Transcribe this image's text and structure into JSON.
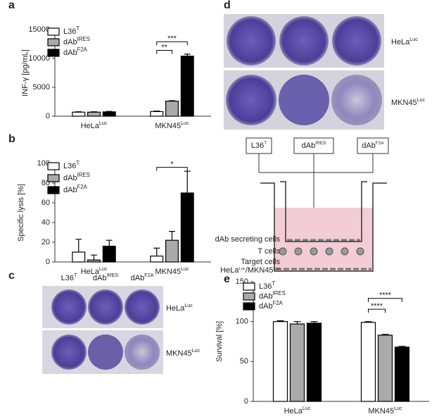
{
  "chart_data": [
    {
      "type": "bar",
      "letter": "a",
      "y_label": "INF-γ [pg/mL]",
      "categories": [
        "HeLa",
        "MKN45"
      ],
      "category_superscripts": [
        "Luc",
        "Luc"
      ],
      "series": [
        {
          "name": "L36",
          "name_sup": "T",
          "color": "#ffffff",
          "values": [
            700,
            800
          ],
          "errors": [
            60,
            80
          ]
        },
        {
          "name": "dAb",
          "name_sup": "IRES",
          "color": "#aaaaaa",
          "values": [
            700,
            2600
          ],
          "errors": [
            60,
            80
          ]
        },
        {
          "name": "dAb",
          "name_sup": "F2A",
          "color": "#000000",
          "values": [
            750,
            10400
          ],
          "errors": [
            80,
            350
          ]
        }
      ],
      "ylim": [
        0,
        15000
      ],
      "yticks": [
        0,
        5000,
        10000,
        15000
      ],
      "annotations": [
        "**",
        "***"
      ]
    },
    {
      "type": "bar",
      "letter": "b",
      "y_label": "Specific lysis [%]",
      "categories": [
        "HeLa",
        "MKN45"
      ],
      "category_superscripts": [
        "Luc",
        "Luc"
      ],
      "series": [
        {
          "name": "L36",
          "name_sup": "T",
          "color": "#ffffff",
          "values": [
            10,
            6
          ],
          "errors": [
            13,
            8
          ]
        },
        {
          "name": "dAb",
          "name_sup": "IRES",
          "color": "#aaaaaa",
          "values": [
            2,
            22
          ],
          "errors": [
            5,
            9
          ]
        },
        {
          "name": "dAb",
          "name_sup": "F2A",
          "color": "#000000",
          "values": [
            16,
            70
          ],
          "errors": [
            6,
            22
          ]
        }
      ],
      "ylim": [
        0,
        100
      ],
      "yticks": [
        0,
        20,
        40,
        60,
        80,
        100
      ],
      "annotations": [
        "*"
      ]
    },
    {
      "type": "bar",
      "letter": "e",
      "y_label": "Survival [%]",
      "categories": [
        "HeLa",
        "MKN45"
      ],
      "category_superscripts": [
        "Luc",
        "Luc"
      ],
      "series": [
        {
          "name": "L36",
          "name_sup": "T",
          "color": "#ffffff",
          "values": [
            100,
            99
          ],
          "errors": [
            1,
            1
          ]
        },
        {
          "name": "dAb",
          "name_sup": "IRES",
          "color": "#aaaaaa",
          "values": [
            97,
            83
          ],
          "errors": [
            3,
            1
          ]
        },
        {
          "name": "dAb",
          "name_sup": "F2A",
          "color": "#000000",
          "values": [
            98,
            68
          ],
          "errors": [
            2,
            1
          ]
        }
      ],
      "ylim": [
        0,
        150
      ],
      "yticks": [
        0,
        50,
        100,
        150
      ],
      "annotations": [
        "****",
        "****"
      ]
    }
  ],
  "panel_c": {
    "letter": "c",
    "columns": [
      {
        "text": "L36",
        "sup": "T"
      },
      {
        "text": "dAb",
        "sup": "IRES"
      },
      {
        "text": "dAb",
        "sup": "F2A"
      }
    ],
    "rows": [
      {
        "text": "HeLa",
        "sup": "Luc"
      },
      {
        "text": "MKN45",
        "sup": "Luc"
      }
    ]
  },
  "panel_d": {
    "letter": "d",
    "rows": [
      {
        "text": "HeLa",
        "sup": "Luc"
      },
      {
        "text": "MKN45",
        "sup": "Luc"
      }
    ],
    "boxes": [
      {
        "text": "L36",
        "sup": "T"
      },
      {
        "text": "dAb",
        "sup": "IRES"
      },
      {
        "text": "dAb",
        "sup": "F2A"
      }
    ],
    "labels": [
      "dAb secreting cells",
      "T cells",
      "Target cells"
    ],
    "target_label": {
      "text1": "HeLa",
      "sup1": "Luc",
      "text2": "/MKN45",
      "sup2": "Luc"
    }
  }
}
